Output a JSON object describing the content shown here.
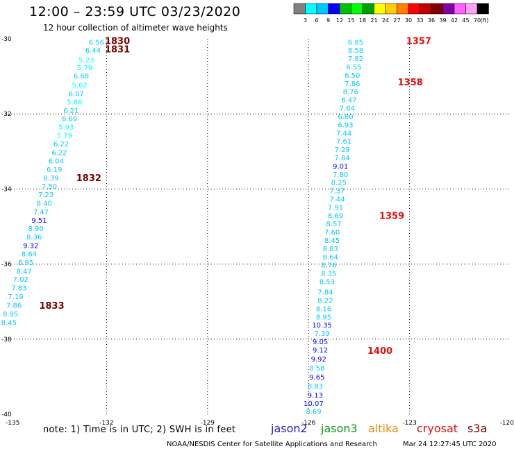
{
  "title": "12:00 – 23:59 UTC 03/23/2020",
  "subtitle": "12 hour collection of altimeter wave heights",
  "note": "note:  1) Time is in UTC;  2) SWH is in feet",
  "credit": "NOAA/NESDIS Center for Satellite Applications and Research",
  "timestamp": "Mar 24 12:27:45 UTC 2020",
  "satellites": [
    {
      "name": "jason2",
      "color": "#1a1ad0"
    },
    {
      "name": "jason3",
      "color": "#0aa00a"
    },
    {
      "name": "altika",
      "color": "#f08a10"
    },
    {
      "name": "cryosat",
      "color": "#e01010"
    },
    {
      "name": "s3a",
      "color": "#7a0000"
    }
  ],
  "colorbar": {
    "colors": [
      "#808080",
      "#00ffff",
      "#00c8ff",
      "#0000ff",
      "#00c000",
      "#00ff00",
      "#00a000",
      "#ffff00",
      "#ffcc00",
      "#ff8000",
      "#ff0000",
      "#c00000",
      "#800000",
      "#8000a0",
      "#ff60ff",
      "#ffa0ff",
      "#000000"
    ],
    "labels": [
      "3",
      "6",
      "9",
      "12",
      "15",
      "18",
      "21",
      "24",
      "27",
      "30",
      "33",
      "36",
      "39",
      "42",
      "45",
      "70"
    ],
    "unit": "(ft)"
  },
  "chart_data": {
    "type": "scatter",
    "xlim": [
      -135,
      -120
    ],
    "ylim": [
      -40,
      -30
    ],
    "x_ticks": [
      -135,
      -132,
      -129,
      -126,
      -123,
      -120
    ],
    "y_ticks": [
      -30,
      -32,
      -34,
      -36,
      -38,
      -40
    ],
    "x_tick_labels": [
      "-135",
      "-132",
      "-129",
      "-126",
      "-123",
      "-120"
    ],
    "y_tick_labels": [
      "-30",
      "-32",
      "-34",
      "-36",
      "-38",
      "-40"
    ],
    "grid": true,
    "tracks": [
      {
        "points": [
          {
            "lon": -132.3,
            "lat": -30.08,
            "swh": "6.56",
            "color": "#00c8ff"
          },
          {
            "lon": -132.4,
            "lat": -30.3,
            "swh": "6.44",
            "color": "#00c8ff"
          },
          {
            "lon": -132.6,
            "lat": -30.55,
            "swh": "5.23",
            "color": "#00ffff"
          },
          {
            "lon": -132.65,
            "lat": -30.76,
            "swh": "5.79",
            "color": "#00ffff"
          },
          {
            "lon": -132.75,
            "lat": -30.98,
            "swh": "6.68",
            "color": "#00c8ff"
          },
          {
            "lon": -132.8,
            "lat": -31.22,
            "swh": "5.62",
            "color": "#00ffff"
          },
          {
            "lon": -132.9,
            "lat": -31.45,
            "swh": "6.07",
            "color": "#00c8ff"
          },
          {
            "lon": -132.95,
            "lat": -31.67,
            "swh": "5.86",
            "color": "#00ffff"
          },
          {
            "lon": -133.05,
            "lat": -31.9,
            "swh": "6.21",
            "color": "#00c8ff"
          },
          {
            "lon": -133.1,
            "lat": -32.12,
            "swh": "6.69",
            "color": "#00c8ff"
          },
          {
            "lon": -133.2,
            "lat": -32.34,
            "swh": "5.93",
            "color": "#00ffff"
          },
          {
            "lon": -133.25,
            "lat": -32.56,
            "swh": "5.79",
            "color": "#00ffff"
          },
          {
            "lon": -133.35,
            "lat": -32.79,
            "swh": "6.22",
            "color": "#00c8ff"
          },
          {
            "lon": -133.4,
            "lat": -33.02,
            "swh": "6.22",
            "color": "#00c8ff"
          },
          {
            "lon": -133.5,
            "lat": -33.24,
            "swh": "6.04",
            "color": "#00c8ff"
          },
          {
            "lon": -133.55,
            "lat": -33.47,
            "swh": "6.19",
            "color": "#00c8ff"
          },
          {
            "lon": -133.65,
            "lat": -33.7,
            "swh": "6.39",
            "color": "#00c8ff"
          },
          {
            "lon": -133.7,
            "lat": -33.92,
            "swh": "7.50",
            "color": "#00c8ff"
          },
          {
            "lon": -133.8,
            "lat": -34.14,
            "swh": "7.23",
            "color": "#00c8ff"
          },
          {
            "lon": -133.85,
            "lat": -34.37,
            "swh": "8.40",
            "color": "#00c8ff"
          },
          {
            "lon": -133.95,
            "lat": -34.6,
            "swh": "7.47",
            "color": "#00c8ff"
          },
          {
            "lon": -134.0,
            "lat": -34.82,
            "swh": "9.51",
            "color": "#0000ff"
          },
          {
            "lon": -134.1,
            "lat": -35.05,
            "swh": "8.90",
            "color": "#00c8ff"
          },
          {
            "lon": -134.15,
            "lat": -35.27,
            "swh": "8.36",
            "color": "#00c8ff"
          },
          {
            "lon": -134.25,
            "lat": -35.5,
            "swh": "9.32",
            "color": "#0000ff"
          },
          {
            "lon": -134.3,
            "lat": -35.72,
            "swh": "8.64",
            "color": "#00c8ff"
          },
          {
            "lon": -134.4,
            "lat": -35.95,
            "swh": "8.95",
            "color": "#00c8ff"
          },
          {
            "lon": -134.45,
            "lat": -36.18,
            "swh": "8.47",
            "color": "#00c8ff"
          },
          {
            "lon": -134.55,
            "lat": -36.4,
            "swh": "7.02",
            "color": "#00c8ff"
          },
          {
            "lon": -134.6,
            "lat": -36.63,
            "swh": "7.83",
            "color": "#00c8ff"
          },
          {
            "lon": -134.7,
            "lat": -36.86,
            "swh": "7.19",
            "color": "#00c8ff"
          },
          {
            "lon": -134.75,
            "lat": -37.09,
            "swh": "7.86",
            "color": "#00c8ff"
          },
          {
            "lon": -134.85,
            "lat": -37.32,
            "swh": "8.95",
            "color": "#00c8ff"
          },
          {
            "lon": -134.9,
            "lat": -37.55,
            "swh": "8.45",
            "color": "#00c8ff"
          }
        ],
        "time_labels": [
          {
            "time": "1830",
            "lon": -132.05,
            "lat": -30.05,
            "color": "#7a0000"
          },
          {
            "time": "1831",
            "lon": -132.05,
            "lat": -30.27,
            "color": "#7a0000"
          },
          {
            "time": "1832",
            "lon": -132.9,
            "lat": -33.7,
            "color": "#7a0000"
          },
          {
            "time": "1833",
            "lon": -134.0,
            "lat": -37.1,
            "color": "#7a0000"
          }
        ]
      },
      {
        "points": [
          {
            "lon": -124.6,
            "lat": -30.08,
            "swh": "6.85",
            "color": "#00c8ff"
          },
          {
            "lon": -124.6,
            "lat": -30.3,
            "swh": "8.58",
            "color": "#00c8ff"
          },
          {
            "lon": -124.6,
            "lat": -30.52,
            "swh": "7.82",
            "color": "#00c8ff"
          },
          {
            "lon": -124.65,
            "lat": -30.74,
            "swh": "6.55",
            "color": "#00c8ff"
          },
          {
            "lon": -124.7,
            "lat": -30.96,
            "swh": "6.50",
            "color": "#00c8ff"
          },
          {
            "lon": -124.7,
            "lat": -31.18,
            "swh": "7.86",
            "color": "#00c8ff"
          },
          {
            "lon": -124.75,
            "lat": -31.4,
            "swh": "8.76",
            "color": "#00c8ff"
          },
          {
            "lon": -124.8,
            "lat": -31.62,
            "swh": "6.47",
            "color": "#00c8ff"
          },
          {
            "lon": -124.85,
            "lat": -31.84,
            "swh": "7.64",
            "color": "#00c8ff"
          },
          {
            "lon": -124.9,
            "lat": -32.06,
            "swh": "6.80",
            "color": "#00c8ff"
          },
          {
            "lon": -124.9,
            "lat": -32.28,
            "swh": "6.93",
            "color": "#00c8ff"
          },
          {
            "lon": -124.95,
            "lat": -32.5,
            "swh": "7.44",
            "color": "#00c8ff"
          },
          {
            "lon": -124.95,
            "lat": -32.72,
            "swh": "7.61",
            "color": "#00c8ff"
          },
          {
            "lon": -125.0,
            "lat": -32.94,
            "swh": "7.29",
            "color": "#00c8ff"
          },
          {
            "lon": -125.0,
            "lat": -33.16,
            "swh": "7.84",
            "color": "#00c8ff"
          },
          {
            "lon": -125.05,
            "lat": -33.38,
            "swh": "9.01",
            "color": "#0000ff"
          },
          {
            "lon": -125.05,
            "lat": -33.6,
            "swh": "7.80",
            "color": "#00c8ff"
          },
          {
            "lon": -125.1,
            "lat": -33.82,
            "swh": "8.25",
            "color": "#00c8ff"
          },
          {
            "lon": -125.15,
            "lat": -34.04,
            "swh": "7.37",
            "color": "#00c8ff"
          },
          {
            "lon": -125.15,
            "lat": -34.26,
            "swh": "7.44",
            "color": "#00c8ff"
          },
          {
            "lon": -125.2,
            "lat": -34.48,
            "swh": "7.91",
            "color": "#00c8ff"
          },
          {
            "lon": -125.2,
            "lat": -34.7,
            "swh": "8.69",
            "color": "#00c8ff"
          },
          {
            "lon": -125.25,
            "lat": -34.92,
            "swh": "8.57",
            "color": "#00c8ff"
          },
          {
            "lon": -125.3,
            "lat": -35.14,
            "swh": "7.60",
            "color": "#00c8ff"
          },
          {
            "lon": -125.3,
            "lat": -35.36,
            "swh": "8.45",
            "color": "#00c8ff"
          },
          {
            "lon": -125.35,
            "lat": -35.58,
            "swh": "8.83",
            "color": "#00c8ff"
          },
          {
            "lon": -125.35,
            "lat": -35.8,
            "swh": "8.64",
            "color": "#00c8ff"
          },
          {
            "lon": -125.4,
            "lat": -36.02,
            "swh": "8.76",
            "color": "#00c8ff"
          },
          {
            "lon": -125.4,
            "lat": -36.24,
            "swh": "8.35",
            "color": "#00c8ff"
          },
          {
            "lon": -125.45,
            "lat": -36.46,
            "swh": "8.53",
            "color": "#00c8ff"
          },
          {
            "lon": -125.5,
            "lat": -36.74,
            "swh": "7.84",
            "color": "#00c8ff"
          },
          {
            "lon": -125.5,
            "lat": -36.96,
            "swh": "8.22",
            "color": "#00c8ff"
          },
          {
            "lon": -125.55,
            "lat": -37.18,
            "swh": "8.16",
            "color": "#00c8ff"
          },
          {
            "lon": -125.55,
            "lat": -37.4,
            "swh": "8.95",
            "color": "#00c8ff"
          },
          {
            "lon": -125.6,
            "lat": -37.62,
            "swh": "10.35",
            "color": "#0000ff"
          },
          {
            "lon": -125.6,
            "lat": -37.84,
            "swh": "7.39",
            "color": "#00c8ff"
          },
          {
            "lon": -125.65,
            "lat": -38.06,
            "swh": "9.05",
            "color": "#0000ff"
          },
          {
            "lon": -125.65,
            "lat": -38.28,
            "swh": "9.12",
            "color": "#0000ff"
          },
          {
            "lon": -125.7,
            "lat": -38.52,
            "swh": "9.92",
            "color": "#0000ff"
          },
          {
            "lon": -125.75,
            "lat": -38.76,
            "swh": "8.58",
            "color": "#00c8ff"
          },
          {
            "lon": -125.75,
            "lat": -39.0,
            "swh": "9.65",
            "color": "#0000ff"
          },
          {
            "lon": -125.8,
            "lat": -39.24,
            "swh": "8.83",
            "color": "#00c8ff"
          },
          {
            "lon": -125.8,
            "lat": -39.48,
            "swh": "9.13",
            "color": "#0000ff"
          },
          {
            "lon": -125.85,
            "lat": -39.7,
            "swh": "10.07",
            "color": "#0000ff"
          },
          {
            "lon": -125.85,
            "lat": -39.92,
            "swh": "8.69",
            "color": "#00c8ff"
          }
        ],
        "time_labels": [
          {
            "time": "1357",
            "lon": -123.1,
            "lat": -30.05,
            "color": "#e01010"
          },
          {
            "time": "1358",
            "lon": -123.35,
            "lat": -31.15,
            "color": "#e01010"
          },
          {
            "time": "1359",
            "lon": -123.9,
            "lat": -34.7,
            "color": "#e01010"
          },
          {
            "time": "1400",
            "lon": -124.25,
            "lat": -38.3,
            "color": "#e01010"
          }
        ]
      }
    ]
  }
}
